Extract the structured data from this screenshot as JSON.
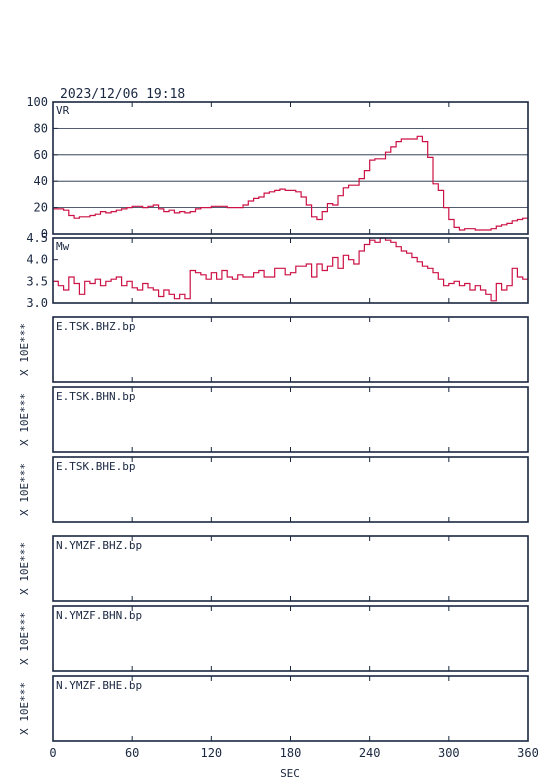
{
  "header": {
    "datetime": "2023/12/06 19:18"
  },
  "colors": {
    "line": "#cc1144",
    "frame": "#1a2740",
    "grid": "#1a2740",
    "text": "#1a2740"
  },
  "x_axis": {
    "label": "SEC",
    "min": 0,
    "max": 360,
    "ticks": [
      0,
      60,
      120,
      180,
      240,
      300,
      360
    ]
  },
  "chart_data": [
    {
      "type": "line",
      "panel_label": "VR",
      "ylim": [
        0,
        100
      ],
      "yticks": [
        0,
        20,
        40,
        60,
        80,
        100
      ],
      "grid": true,
      "x": [
        0,
        4,
        8,
        12,
        16,
        20,
        24,
        28,
        32,
        36,
        40,
        44,
        48,
        52,
        56,
        60,
        64,
        68,
        72,
        76,
        80,
        84,
        88,
        92,
        96,
        100,
        104,
        108,
        112,
        116,
        120,
        124,
        128,
        132,
        136,
        140,
        144,
        148,
        152,
        156,
        160,
        164,
        168,
        172,
        176,
        180,
        184,
        188,
        192,
        196,
        200,
        204,
        208,
        212,
        216,
        220,
        224,
        228,
        232,
        236,
        240,
        244,
        248,
        252,
        256,
        260,
        264,
        268,
        272,
        276,
        280,
        284,
        288,
        292,
        296,
        300,
        304,
        308,
        312,
        316,
        320,
        324,
        328,
        332,
        336,
        340,
        344,
        348,
        352,
        356,
        360
      ],
      "values": [
        19,
        19,
        18,
        14,
        12,
        13,
        13,
        14,
        15,
        17,
        16,
        17,
        18,
        19,
        20,
        21,
        21,
        20,
        21,
        22,
        19,
        17,
        18,
        16,
        17,
        16,
        17,
        19,
        20,
        20,
        21,
        21,
        21,
        20,
        20,
        20,
        22,
        25,
        27,
        28,
        31,
        32,
        33,
        34,
        33,
        33,
        32,
        28,
        22,
        13,
        11,
        17,
        23,
        22,
        29,
        35,
        37,
        37,
        42,
        48,
        56,
        57,
        57,
        62,
        66,
        70,
        72,
        72,
        72,
        74,
        70,
        58,
        38,
        33,
        20,
        11,
        5,
        3,
        4,
        4,
        3,
        3,
        3,
        4,
        6,
        7,
        8,
        10,
        11,
        12,
        13
      ]
    },
    {
      "type": "line",
      "panel_label": "Mw",
      "ylim": [
        3.0,
        4.5
      ],
      "yticks": [
        3.0,
        3.5,
        4.0,
        4.5
      ],
      "grid": false,
      "x": [
        0,
        4,
        8,
        12,
        16,
        20,
        24,
        28,
        32,
        36,
        40,
        44,
        48,
        52,
        56,
        60,
        64,
        68,
        72,
        76,
        80,
        84,
        88,
        92,
        96,
        100,
        104,
        108,
        112,
        116,
        120,
        124,
        128,
        132,
        136,
        140,
        144,
        148,
        152,
        156,
        160,
        164,
        168,
        172,
        176,
        180,
        184,
        188,
        192,
        196,
        200,
        204,
        208,
        212,
        216,
        220,
        224,
        228,
        232,
        236,
        240,
        244,
        248,
        252,
        256,
        260,
        264,
        268,
        272,
        276,
        280,
        284,
        288,
        292,
        296,
        300,
        304,
        308,
        312,
        316,
        320,
        324,
        328,
        332,
        336,
        340,
        344,
        348,
        352,
        356,
        360
      ],
      "values": [
        3.5,
        3.4,
        3.3,
        3.6,
        3.45,
        3.2,
        3.5,
        3.45,
        3.55,
        3.4,
        3.5,
        3.55,
        3.6,
        3.4,
        3.5,
        3.35,
        3.3,
        3.45,
        3.35,
        3.3,
        3.15,
        3.3,
        3.2,
        3.1,
        3.2,
        3.1,
        3.75,
        3.7,
        3.65,
        3.55,
        3.7,
        3.55,
        3.75,
        3.6,
        3.55,
        3.65,
        3.6,
        3.6,
        3.7,
        3.75,
        3.6,
        3.6,
        3.8,
        3.8,
        3.65,
        3.7,
        3.85,
        3.85,
        3.9,
        3.6,
        3.9,
        3.75,
        3.85,
        4.05,
        3.8,
        4.1,
        4.0,
        3.9,
        4.2,
        4.35,
        4.45,
        4.4,
        4.5,
        4.45,
        4.4,
        4.3,
        4.2,
        4.15,
        4.05,
        3.95,
        3.85,
        3.8,
        3.7,
        3.55,
        3.4,
        3.45,
        3.5,
        3.4,
        3.45,
        3.3,
        3.4,
        3.3,
        3.2,
        3.05,
        3.45,
        3.3,
        3.4,
        3.8,
        3.6,
        3.55,
        3.5
      ]
    }
  ],
  "waveform_panels": [
    {
      "label": "E.TSK.BHZ.bp",
      "scale": "X 10E***"
    },
    {
      "label": "E.TSK.BHN.bp",
      "scale": "X 10E***"
    },
    {
      "label": "E.TSK.BHE.bp",
      "scale": "X 10E***"
    },
    {
      "label": "N.YMZF.BHZ.bp",
      "scale": "X 10E***"
    },
    {
      "label": "N.YMZF.BHN.bp",
      "scale": "X 10E***"
    },
    {
      "label": "N.YMZF.BHE.bp",
      "scale": "X 10E***"
    }
  ]
}
